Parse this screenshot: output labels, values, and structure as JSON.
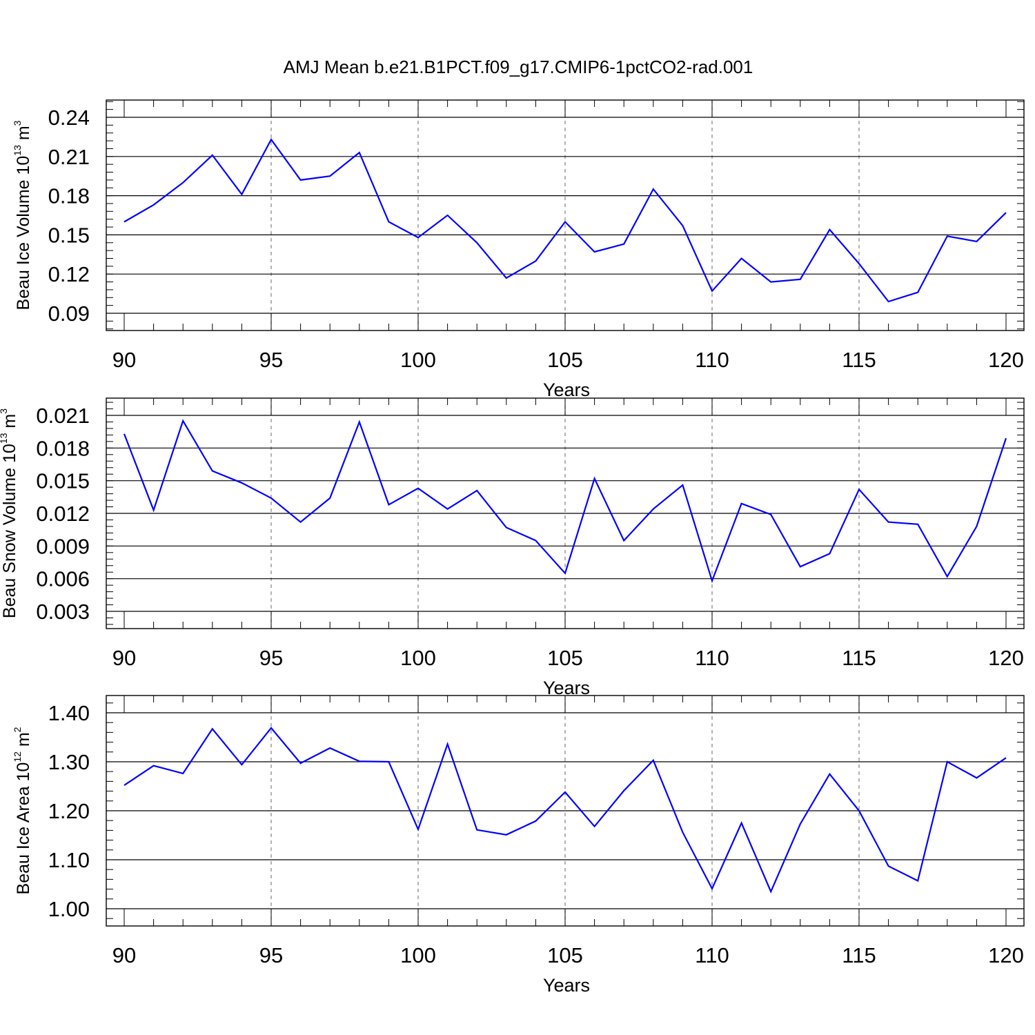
{
  "title": "AMJ Mean b.e21.B1PCT.f09_g17.CMIP6-1pctCO2-rad.001",
  "line_color": "#0000ff",
  "grid_color": "#808080",
  "chart_data": [
    {
      "type": "line",
      "ylabel": {
        "base": "Beau Ice Volume 10",
        "exp": "13",
        "unit": " m",
        "unit_exp": "3"
      },
      "xlabel": "Years",
      "xlim": [
        90,
        120
      ],
      "ylim": [
        0.09,
        0.24
      ],
      "x_ticks": [
        90,
        95,
        100,
        105,
        110,
        115,
        120
      ],
      "y_ticks": [
        "0.09",
        "0.12",
        "0.15",
        "0.18",
        "0.21",
        "0.24"
      ],
      "grid": "x dashed at major ticks",
      "x": [
        90,
        91,
        92,
        93,
        94,
        95,
        96,
        97,
        98,
        99,
        100,
        101,
        102,
        103,
        104,
        105,
        106,
        107,
        108,
        109,
        110,
        111,
        112,
        113,
        114,
        115,
        116,
        117,
        118,
        119,
        120
      ],
      "values": [
        0.16,
        0.173,
        0.19,
        0.211,
        0.181,
        0.223,
        0.192,
        0.195,
        0.213,
        0.16,
        0.148,
        0.165,
        0.144,
        0.117,
        0.13,
        0.16,
        0.137,
        0.143,
        0.185,
        0.157,
        0.107,
        0.132,
        0.114,
        0.116,
        0.154,
        0.128,
        0.099,
        0.106,
        0.149,
        0.145,
        0.167
      ]
    },
    {
      "type": "line",
      "ylabel": {
        "base": "Beau Snow Volume 10",
        "exp": "13",
        "unit": " m",
        "unit_exp": "3"
      },
      "xlabel": "Years",
      "xlim": [
        90,
        120
      ],
      "ylim": [
        0.003,
        0.021
      ],
      "x_ticks": [
        90,
        95,
        100,
        105,
        110,
        115,
        120
      ],
      "y_ticks": [
        "0.003",
        "0.006",
        "0.009",
        "0.012",
        "0.015",
        "0.018",
        "0.021"
      ],
      "grid": "x dashed at major ticks",
      "x": [
        90,
        91,
        92,
        93,
        94,
        95,
        96,
        97,
        98,
        99,
        100,
        101,
        102,
        103,
        104,
        105,
        106,
        107,
        108,
        109,
        110,
        111,
        112,
        113,
        114,
        115,
        116,
        117,
        118,
        119,
        120
      ],
      "values": [
        0.0193,
        0.0123,
        0.0205,
        0.0159,
        0.0148,
        0.0134,
        0.0112,
        0.0134,
        0.0204,
        0.0128,
        0.0143,
        0.0124,
        0.0141,
        0.0107,
        0.0095,
        0.0065,
        0.0152,
        0.0095,
        0.0124,
        0.0146,
        0.0058,
        0.0129,
        0.0119,
        0.0071,
        0.0083,
        0.0142,
        0.0112,
        0.011,
        0.0062,
        0.0108,
        0.0189
      ]
    },
    {
      "type": "line",
      "ylabel": {
        "base": "Beau Ice Area 10",
        "exp": "12",
        "unit": " m",
        "unit_exp": "2"
      },
      "xlabel": "Years",
      "xlim": [
        90,
        120
      ],
      "ylim": [
        1.0,
        1.4
      ],
      "x_ticks": [
        90,
        95,
        100,
        105,
        110,
        115,
        120
      ],
      "y_ticks": [
        "1.00",
        "1.10",
        "1.20",
        "1.30",
        "1.40"
      ],
      "grid": "x dashed at major ticks",
      "x": [
        90,
        91,
        92,
        93,
        94,
        95,
        96,
        97,
        98,
        99,
        100,
        101,
        102,
        103,
        104,
        105,
        106,
        107,
        108,
        109,
        110,
        111,
        112,
        113,
        114,
        115,
        116,
        117,
        118,
        119,
        120
      ],
      "values": [
        1.252,
        1.292,
        1.276,
        1.367,
        1.294,
        1.369,
        1.297,
        1.328,
        1.301,
        1.3,
        1.162,
        1.336,
        1.161,
        1.151,
        1.179,
        1.238,
        1.168,
        1.241,
        1.303,
        1.156,
        1.041,
        1.175,
        1.035,
        1.173,
        1.275,
        1.2,
        1.087,
        1.057,
        1.3,
        1.267,
        1.308
      ]
    }
  ]
}
